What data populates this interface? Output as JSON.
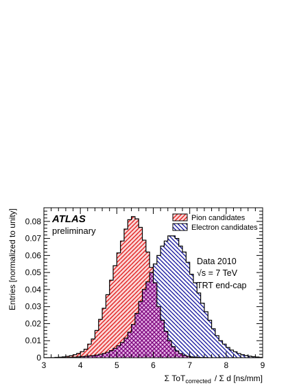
{
  "chart_data": {
    "type": "bar",
    "title": "",
    "xlabel": {
      "main": "Σ ToT",
      "sub": "corrected",
      "rest": "/  Σ d  [ns/mm]"
    },
    "ylabel": "Entries  [normalized to unity]",
    "xlim": [
      3,
      9
    ],
    "ylim": [
      0,
      0.088
    ],
    "x_ticks": [
      "3",
      "4",
      "5",
      "6",
      "7",
      "8",
      "9"
    ],
    "y_ticks": [
      "0",
      "0.01",
      "0.02",
      "0.03",
      "0.04",
      "0.05",
      "0.06",
      "0.07",
      "0.08"
    ],
    "bin_width": 0.1,
    "bin_edges_start": 3.0,
    "legend_position": "top-right",
    "series": [
      {
        "name": "Pion candidates",
        "color": "#e02020",
        "fill": "#f4b0b0",
        "pattern": "hatch-down",
        "values": [
          0.0,
          0.0,
          0.0,
          0.0002,
          0.0003,
          0.0005,
          0.0008,
          0.0012,
          0.0018,
          0.0026,
          0.0036,
          0.005,
          0.008,
          0.011,
          0.016,
          0.0225,
          0.029,
          0.037,
          0.0455,
          0.054,
          0.0615,
          0.0685,
          0.0755,
          0.081,
          0.0828,
          0.0815,
          0.0765,
          0.069,
          0.062,
          0.053,
          0.044,
          0.03,
          0.022,
          0.0155,
          0.01,
          0.0065,
          0.004,
          0.0025,
          0.0015,
          0.0009,
          0.0005,
          0.0003,
          0.0002,
          0.0001,
          0.0001,
          0.0,
          0.0,
          0.0,
          0.0,
          0.0,
          0.0,
          0.0,
          0.0,
          0.0,
          0.0,
          0.0,
          0.0,
          0.0,
          0.0,
          0.0
        ]
      },
      {
        "name": "Electron candidates",
        "color": "#1a1aa0",
        "fill": "#b8b8ff",
        "pattern": "hatch-up",
        "values": [
          0.0,
          0.0,
          0.0,
          0.0,
          0.0,
          0.0001,
          0.0001,
          0.0002,
          0.0003,
          0.0005,
          0.0006,
          0.0008,
          0.001,
          0.0012,
          0.0015,
          0.002,
          0.0025,
          0.0032,
          0.0042,
          0.0055,
          0.007,
          0.009,
          0.0115,
          0.015,
          0.0195,
          0.026,
          0.033,
          0.04,
          0.0445,
          0.05,
          0.055,
          0.06,
          0.0655,
          0.0685,
          0.0715,
          0.0715,
          0.07,
          0.0655,
          0.062,
          0.056,
          0.049,
          0.044,
          0.038,
          0.032,
          0.027,
          0.022,
          0.017,
          0.013,
          0.01,
          0.008,
          0.006,
          0.0045,
          0.0035,
          0.0025,
          0.0018,
          0.0013,
          0.0009,
          0.0006,
          0.0004,
          0.0002
        ]
      }
    ],
    "overlap_color": "#7a007a",
    "annotations": {
      "experiment": "ATLAS",
      "status": "preliminary",
      "dataset": "Data 2010",
      "energy": "√s = 7 TeV",
      "region": "TRT end-cap"
    }
  }
}
